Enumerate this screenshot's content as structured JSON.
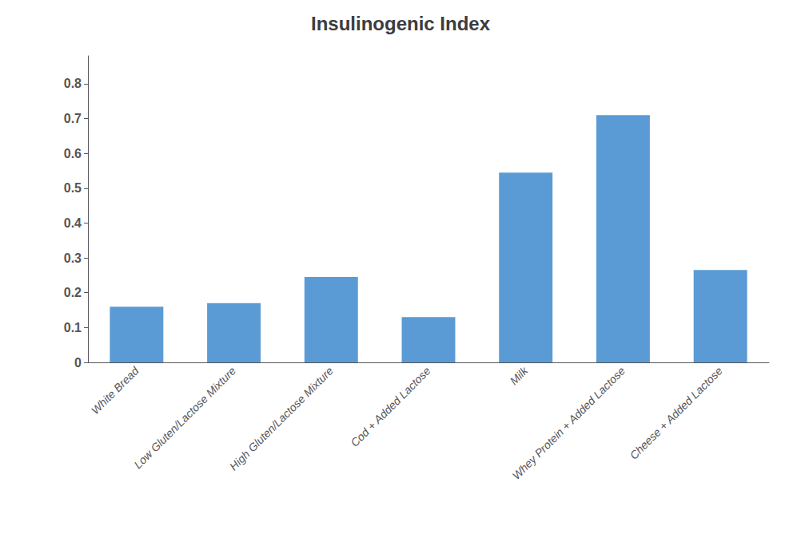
{
  "chart_data": {
    "type": "bar",
    "title": "Insulinogenic Index",
    "categories": [
      "White Bread",
      "Low Gluten/Lactose Mixture",
      "High Gluten/Lactose Mixture",
      "Cod + Added Lactose",
      "Milk",
      "Whey Protein + Added Lactose",
      "Cheese + Added Lactose"
    ],
    "values": [
      0.16,
      0.17,
      0.245,
      0.13,
      0.545,
      0.71,
      0.265
    ],
    "color": "#5b9bd5",
    "ylim": [
      0,
      0.88
    ],
    "yticks": [
      0,
      0.1,
      0.2,
      0.3,
      0.4,
      0.5,
      0.6,
      0.7,
      0.8
    ],
    "grid": false
  }
}
